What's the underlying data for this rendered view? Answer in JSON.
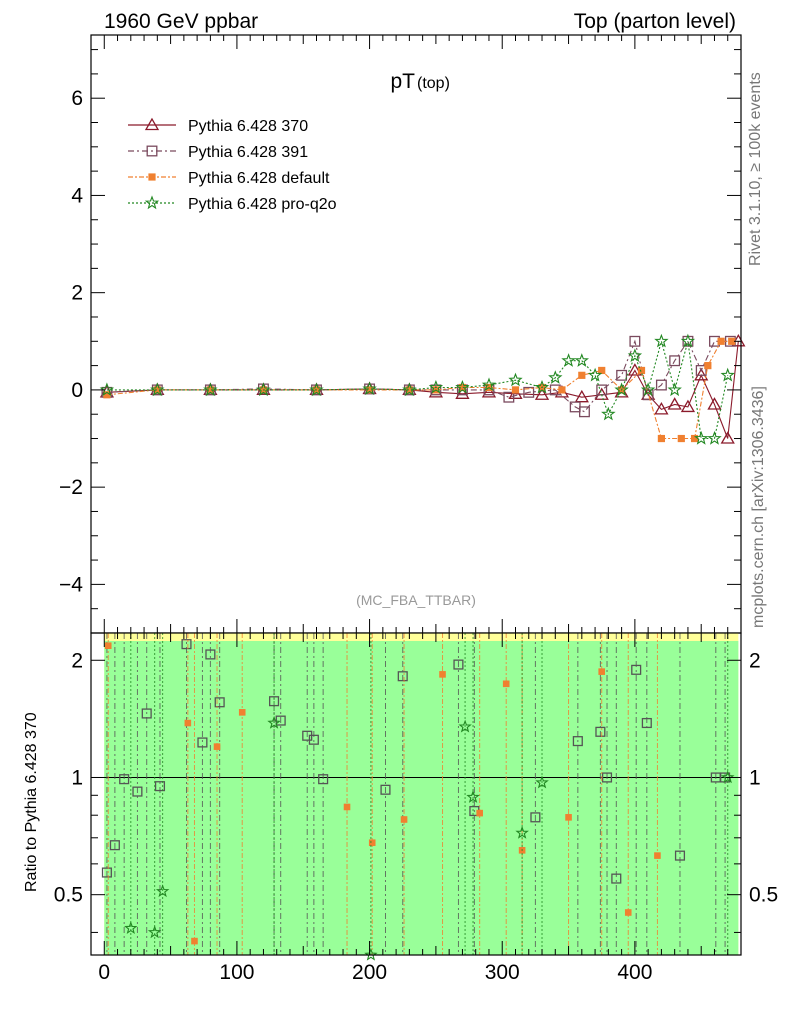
{
  "header": {
    "left_label": "1960 GeV ppbar",
    "right_label": "Top (parton level)"
  },
  "side_labels": {
    "rivet": "Rivet 3.1.10, ≥ 100k events",
    "mcplots": "mcplots.cern.ch [arXiv:1306.3436]"
  },
  "chart_data": [
    {
      "type": "scatter",
      "title": "pT",
      "title_sub": "(top)",
      "watermark": "(MC_FBA_TTBAR)",
      "xlabel": "",
      "ylabel": "",
      "xlim": [
        -10,
        480
      ],
      "ylim": [
        -5,
        7.3
      ],
      "yticks": [
        -4,
        -2,
        0,
        2,
        4,
        6
      ],
      "ytick_labels": [
        "−4",
        "−2",
        "0",
        "2",
        "4",
        "6"
      ],
      "grid": false,
      "legend_position": "top-left",
      "series": [
        {
          "name": "Pythia 6.428 370",
          "color": "#8b1a2b",
          "marker": "triangle-open",
          "x": [
            2,
            40,
            80,
            120,
            160,
            200,
            230,
            250,
            270,
            290,
            310,
            330,
            345,
            360,
            375,
            390,
            400,
            410,
            420,
            430,
            440,
            450,
            460,
            470,
            478
          ],
          "y": [
            -0.05,
            0.0,
            0.0,
            0.0,
            0.0,
            0.02,
            0.0,
            -0.05,
            -0.08,
            -0.05,
            -0.08,
            -0.1,
            -0.05,
            -0.15,
            -0.1,
            -0.05,
            0.4,
            -0.1,
            -0.4,
            -0.3,
            -0.35,
            0.3,
            -0.3,
            -1.0,
            1.0
          ]
        },
        {
          "name": "Pythia 6.428 391",
          "color": "#7a4a5e",
          "marker": "square-open",
          "x": [
            2,
            40,
            80,
            120,
            160,
            200,
            230,
            250,
            270,
            290,
            305,
            320,
            340,
            355,
            362,
            375,
            390,
            400,
            410,
            420,
            430,
            440,
            450,
            460,
            472
          ],
          "y": [
            -0.05,
            0.0,
            0.0,
            0.02,
            0.0,
            0.02,
            0.0,
            0.0,
            0.0,
            0.0,
            -0.15,
            -0.05,
            0.0,
            -0.35,
            -0.45,
            0.0,
            0.3,
            1.0,
            -0.1,
            0.1,
            0.6,
            1.0,
            0.4,
            1.0,
            1.0
          ]
        },
        {
          "name": "Pythia 6.428 default",
          "color": "#f08030",
          "marker": "square-filled",
          "x": [
            2,
            40,
            80,
            120,
            160,
            200,
            230,
            250,
            270,
            290,
            310,
            330,
            345,
            360,
            375,
            390,
            405,
            420,
            435,
            445,
            455,
            465,
            473
          ],
          "y": [
            -0.1,
            0.0,
            0.0,
            0.0,
            0.0,
            0.0,
            0.0,
            0.0,
            0.05,
            0.05,
            0.0,
            0.05,
            0.0,
            0.3,
            0.4,
            0.0,
            0.4,
            -1.0,
            -1.0,
            -1.0,
            0.5,
            1.0,
            1.0
          ]
        },
        {
          "name": "Pythia 6.428 pro-q2o",
          "color": "#228822",
          "marker": "star",
          "x": [
            2,
            40,
            80,
            120,
            160,
            200,
            230,
            250,
            270,
            290,
            310,
            330,
            340,
            350,
            360,
            370,
            380,
            390,
            400,
            410,
            420,
            430,
            440,
            450,
            460,
            470
          ],
          "y": [
            0.0,
            0.0,
            0.0,
            0.0,
            0.0,
            0.02,
            0.0,
            0.05,
            0.05,
            0.1,
            0.2,
            0.05,
            0.25,
            0.6,
            0.6,
            0.3,
            -0.5,
            0.0,
            0.7,
            0.0,
            1.0,
            0.0,
            1.0,
            -1.0,
            -1.0,
            0.3
          ]
        }
      ]
    },
    {
      "type": "scatter",
      "title": "",
      "xlabel": "",
      "ylabel": "Ratio to Pythia 6.428 370",
      "xlim": [
        -10,
        480
      ],
      "ylim": [
        0.35,
        2.35
      ],
      "yscale": "log",
      "yticks": [
        0.5,
        1,
        2
      ],
      "ytick_labels": [
        "0.5",
        "1",
        "2"
      ],
      "xticks": [
        0,
        100,
        200,
        300,
        400
      ],
      "xtick_labels": [
        "0",
        "100",
        "200",
        "300",
        "400"
      ],
      "reference_line": 1,
      "band_color": "#99ff99",
      "band_outer_color": "#ffff99",
      "series": [
        {
          "name": "Pythia 6.428 391",
          "color": "#555555",
          "marker": "square-open",
          "x": [
            2,
            8,
            15,
            25,
            32,
            42,
            62,
            74,
            80,
            87,
            128,
            133,
            153,
            158,
            165,
            212,
            225,
            267,
            279,
            325,
            357,
            374,
            379,
            386,
            401,
            409,
            434,
            461,
            468
          ],
          "y": [
            0.57,
            0.67,
            0.99,
            0.92,
            1.46,
            0.95,
            2.2,
            1.23,
            2.07,
            1.56,
            1.57,
            1.4,
            1.28,
            1.25,
            0.99,
            0.93,
            1.82,
            1.95,
            0.82,
            0.79,
            1.24,
            1.31,
            1.0,
            0.55,
            1.89,
            1.38,
            0.63,
            1.0,
            1.0
          ]
        },
        {
          "name": "Pythia 6.428 default",
          "color": "#f08030",
          "marker": "square-filled",
          "x": [
            3,
            63,
            68,
            85,
            104,
            183,
            202,
            226,
            255,
            283,
            303,
            315,
            350,
            375,
            395,
            417
          ],
          "y": [
            2.18,
            1.38,
            0.38,
            1.2,
            1.47,
            0.84,
            0.68,
            0.78,
            1.84,
            0.81,
            1.74,
            0.65,
            0.79,
            1.87,
            0.45,
            0.63
          ]
        },
        {
          "name": "Pythia 6.428 pro-q2o",
          "color": "#228822",
          "marker": "star",
          "x": [
            20,
            38,
            44,
            128,
            201,
            272,
            278,
            315,
            330,
            470
          ],
          "y": [
            0.41,
            0.4,
            0.51,
            1.38,
            0.35,
            1.35,
            0.89,
            0.72,
            0.97,
            1.0
          ]
        }
      ]
    }
  ]
}
